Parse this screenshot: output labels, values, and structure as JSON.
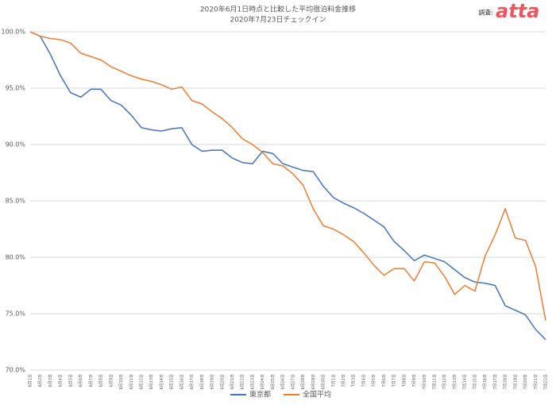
{
  "chart_data": {
    "type": "line",
    "title": "2020年6月1日時点と比較した平均宿泊料金推移",
    "subtitle": "2020年7月23日チェックイン",
    "source_label": "調査:",
    "logo": "atta",
    "categories": [
      "6月1日",
      "6月2日",
      "6月3日",
      "6月4日",
      "6月5日",
      "6月6日",
      "6月7日",
      "6月8日",
      "6月9日",
      "6月10日",
      "6月11日",
      "6月12日",
      "6月13日",
      "6月14日",
      "6月15日",
      "6月16日",
      "6月17日",
      "6月18日",
      "6月19日",
      "6月20日",
      "6月21日",
      "6月22日",
      "6月23日",
      "6月24日",
      "6月25日",
      "6月26日",
      "6月27日",
      "6月28日",
      "6月29日",
      "6月30日",
      "7月1日",
      "7月2日",
      "7月3日",
      "7月4日",
      "7月5日",
      "7月6日",
      "7月7日",
      "7月8日",
      "7月9日",
      "7月10日",
      "7月11日",
      "7月12日",
      "7月13日",
      "7月14日",
      "7月15日",
      "7月16日",
      "7月17日",
      "7月18日",
      "7月19日",
      "7月20日",
      "7月21日",
      "7月22日"
    ],
    "series": [
      {
        "name": "東京都",
        "color": "#4472c4",
        "values": [
          100.0,
          99.6,
          98.0,
          96.1,
          94.6,
          94.2,
          94.9,
          94.9,
          93.9,
          93.5,
          92.6,
          91.5,
          91.3,
          91.2,
          91.4,
          91.5,
          90.0,
          89.4,
          89.5,
          89.5,
          88.8,
          88.4,
          88.3,
          89.4,
          89.2,
          88.3,
          88.0,
          87.7,
          87.6,
          86.3,
          85.3,
          84.8,
          84.4,
          83.9,
          83.3,
          82.7,
          81.4,
          80.6,
          79.7,
          80.2,
          79.9,
          79.6,
          78.9,
          78.2,
          77.8,
          77.7,
          77.5,
          75.7,
          75.3,
          74.9,
          73.6,
          72.7
        ]
      },
      {
        "name": "全国平均",
        "color": "#ed7d31",
        "values": [
          100.0,
          99.6,
          99.4,
          99.3,
          99.0,
          98.1,
          97.8,
          97.5,
          96.9,
          96.5,
          96.1,
          95.8,
          95.6,
          95.3,
          94.9,
          95.1,
          93.9,
          93.6,
          92.9,
          92.3,
          91.5,
          90.5,
          90.0,
          89.3,
          88.3,
          88.1,
          87.4,
          86.4,
          84.3,
          82.8,
          82.5,
          82.0,
          81.4,
          80.4,
          79.3,
          78.4,
          79.0,
          79.0,
          77.9,
          79.6,
          79.5,
          78.3,
          76.7,
          77.5,
          77.0,
          80.1,
          82.0,
          84.3,
          81.7,
          81.5,
          79.2,
          74.4
        ]
      }
    ],
    "ylim": [
      70,
      100
    ],
    "yticks": [
      {
        "value": 70,
        "label": "70.0%"
      },
      {
        "value": 75,
        "label": "75.0%"
      },
      {
        "value": 80,
        "label": "80.0%"
      },
      {
        "value": 85,
        "label": "85.0%"
      },
      {
        "value": 90,
        "label": "90.0%"
      },
      {
        "value": 95,
        "label": "95.0%"
      },
      {
        "value": 100,
        "label": "100.0%"
      }
    ],
    "grid": true,
    "legend": "bottom"
  }
}
